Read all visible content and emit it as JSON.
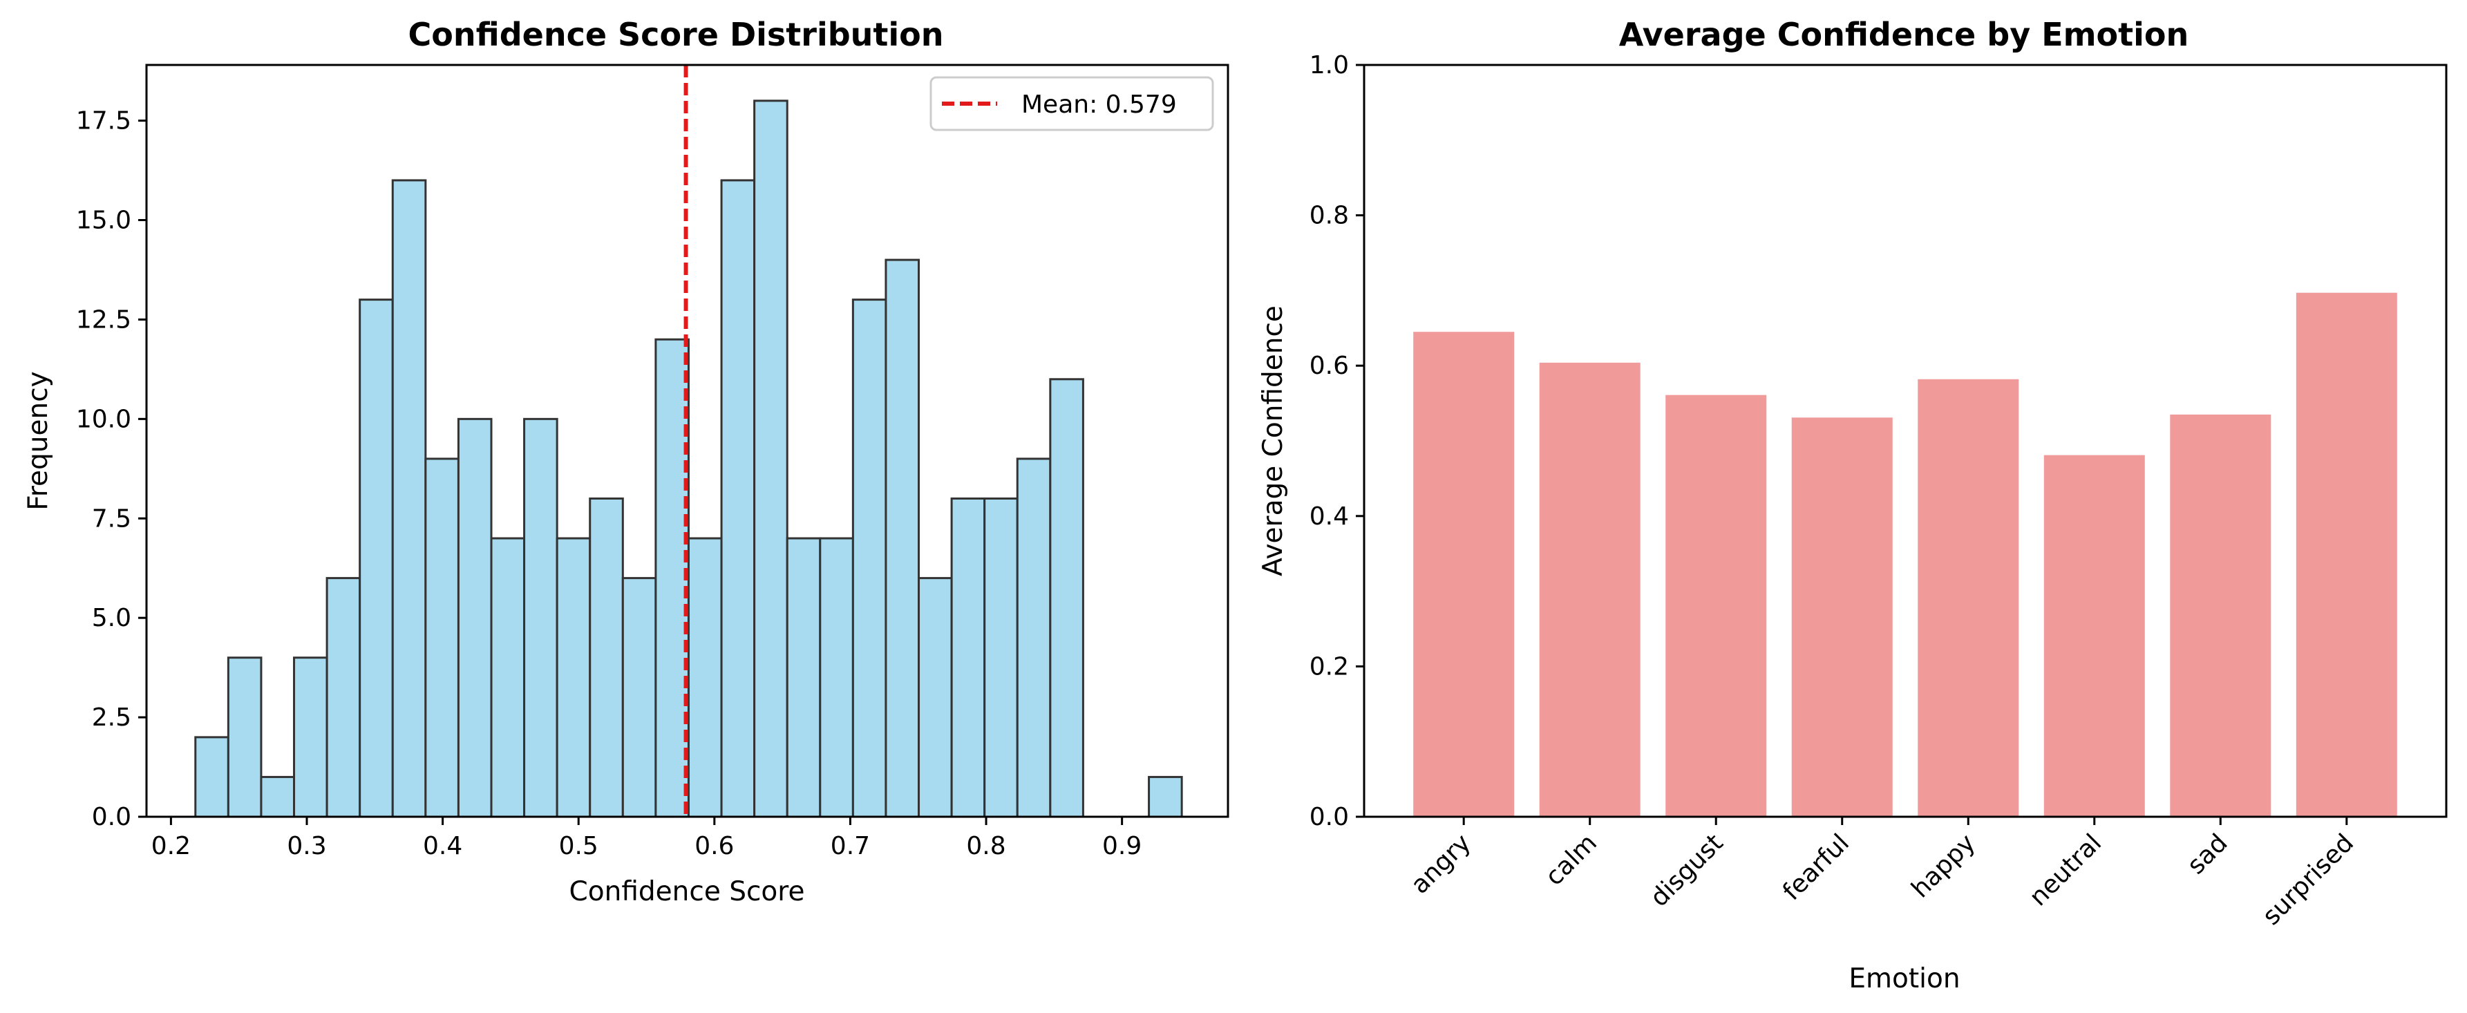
{
  "chart_data": [
    {
      "type": "bar",
      "subtype": "histogram",
      "title": "Confidence Score Distribution",
      "xlabel": "Confidence Score",
      "ylabel": "Frequency",
      "xlim": [
        0.182,
        0.978
      ],
      "ylim": [
        0,
        18.9
      ],
      "xticks": [
        "0.2",
        "0.3",
        "0.4",
        "0.5",
        "0.6",
        "0.7",
        "0.8",
        "0.9"
      ],
      "yticks": [
        "0.0",
        "2.5",
        "5.0",
        "7.5",
        "10.0",
        "12.5",
        "15.0",
        "17.5"
      ],
      "bin_start": 0.218,
      "bin_width": 0.0242,
      "values": [
        2,
        4,
        1,
        4,
        6,
        13,
        16,
        9,
        10,
        7,
        10,
        7,
        8,
        6,
        12,
        7,
        16,
        18,
        7,
        7,
        13,
        14,
        6,
        8,
        8,
        9,
        11,
        0,
        0,
        1
      ],
      "bar_color": "#a8dbef",
      "edge_color": "#333333",
      "mean_line": {
        "value": 0.579,
        "label": "Mean: 0.579",
        "color": "#e31a1c"
      },
      "legend": {
        "placement": "top-right",
        "entries": [
          "Mean: 0.579"
        ]
      },
      "grid": false
    },
    {
      "type": "bar",
      "title": "Average Confidence by Emotion",
      "xlabel": "Emotion",
      "ylabel": "Average Confidence",
      "ylim": [
        0,
        1.0
      ],
      "yticks": [
        "0.0",
        "0.2",
        "0.4",
        "0.6",
        "0.8",
        "1.0"
      ],
      "categories": [
        "angry",
        "calm",
        "disgust",
        "fearful",
        "happy",
        "neutral",
        "sad",
        "surprised"
      ],
      "values": [
        0.645,
        0.604,
        0.561,
        0.531,
        0.582,
        0.481,
        0.535,
        0.697
      ],
      "bar_color": "#f19a9a",
      "grid": false
    }
  ]
}
